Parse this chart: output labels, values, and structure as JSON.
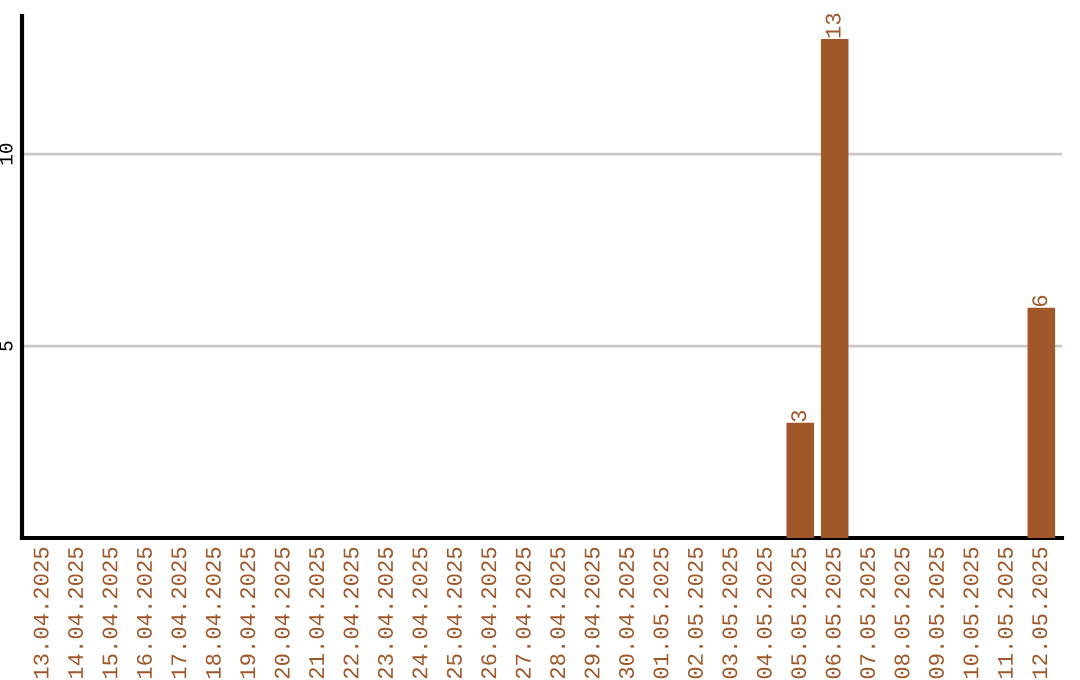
{
  "chart_data": {
    "type": "bar",
    "categories": [
      "13.04.2025",
      "14.04.2025",
      "15.04.2025",
      "16.04.2025",
      "17.04.2025",
      "18.04.2025",
      "19.04.2025",
      "20.04.2025",
      "21.04.2025",
      "22.04.2025",
      "23.04.2025",
      "24.04.2025",
      "25.04.2025",
      "26.04.2025",
      "27.04.2025",
      "28.04.2025",
      "29.04.2025",
      "30.04.2025",
      "01.05.2025",
      "02.05.2025",
      "03.05.2025",
      "04.05.2025",
      "05.05.2025",
      "06.05.2025",
      "07.05.2025",
      "08.05.2025",
      "09.05.2025",
      "10.05.2025",
      "11.05.2025",
      "12.05.2025"
    ],
    "values": [
      0,
      0,
      0,
      0,
      0,
      0,
      0,
      0,
      0,
      0,
      0,
      0,
      0,
      0,
      0,
      0,
      0,
      0,
      0,
      0,
      0,
      0,
      3,
      13,
      0,
      0,
      0,
      0,
      0,
      6
    ],
    "value_labels": [
      null,
      null,
      null,
      null,
      null,
      null,
      null,
      null,
      null,
      null,
      null,
      null,
      null,
      null,
      null,
      null,
      null,
      null,
      null,
      null,
      null,
      null,
      "3",
      "13",
      null,
      null,
      null,
      null,
      null,
      "6"
    ],
    "color": "#a0572a",
    "ylim": [
      0,
      13.6
    ],
    "yticks": [
      5,
      10
    ],
    "grid": "y"
  }
}
